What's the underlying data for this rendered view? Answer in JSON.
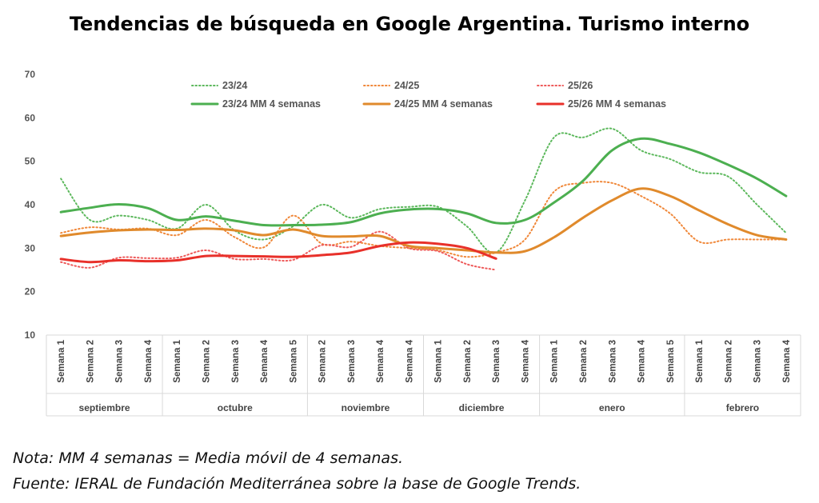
{
  "chart_data": {
    "type": "line",
    "title": "Tendencias de búsqueda en Google Argentina. Turismo interno",
    "ylim": [
      10,
      70
    ],
    "yticks": [
      10,
      20,
      30,
      40,
      50,
      60,
      70
    ],
    "grid": false,
    "legend": "top",
    "months": [
      {
        "name": "septiembre",
        "weeks": [
          "Semana 1",
          "Semana 2",
          "Semana 3",
          "Semana 4"
        ]
      },
      {
        "name": "octubre",
        "weeks": [
          "Semana 1",
          "Semana 2",
          "Semana 3",
          "Semana 4",
          "Semana 5"
        ]
      },
      {
        "name": "noviembre",
        "weeks": [
          "Semana 2",
          "Semana 3",
          "Semana 4",
          "Semana 4"
        ]
      },
      {
        "name": "diciembre",
        "weeks": [
          "Semana 1",
          "Semana 2",
          "Semana 3",
          "Semana 4"
        ]
      },
      {
        "name": "enero",
        "weeks": [
          "Semana 1",
          "Semana 2",
          "Semana 3",
          "Semana 4",
          "Semana 5"
        ]
      },
      {
        "name": "febrero",
        "weeks": [
          "Semana 1",
          "Semana 2",
          "Semana 3",
          "Semana 4"
        ]
      }
    ],
    "series": [
      {
        "name": "23/24",
        "color": "#5cb85c",
        "style": "dotted",
        "values": [
          46,
          36.5,
          37.5,
          36.5,
          34.5,
          40,
          34,
          32,
          35,
          40,
          37,
          39,
          39.5,
          39.5,
          35,
          29,
          41,
          55.5,
          55.5,
          57.5,
          52.5,
          50.5,
          47.5,
          46.5,
          40,
          33.5
        ]
      },
      {
        "name": "24/25",
        "color": "#f0883a",
        "style": "dotted",
        "values": [
          33.5,
          34.8,
          34.3,
          34.5,
          33,
          36.5,
          32.5,
          30.2,
          37.5,
          31,
          31.5,
          30.5,
          30,
          29.5,
          28,
          29,
          32,
          43,
          45,
          45,
          42,
          38,
          31.5,
          32,
          32,
          32
        ]
      },
      {
        "name": "25/26",
        "color": "#ee5a5a",
        "style": "dotted",
        "values": [
          26.8,
          25.5,
          27.8,
          27.7,
          27.8,
          29.5,
          27.5,
          27.5,
          27.3,
          30.7,
          30.3,
          33.8,
          30,
          29.3,
          26.3,
          25
        ]
      },
      {
        "name": "23/24 MM 4 semanas",
        "color": "#4caf50",
        "style": "solid",
        "values": [
          38.3,
          39.3,
          40.1,
          39.2,
          36.5,
          37.3,
          36.3,
          35.3,
          35.3,
          35.4,
          36,
          38,
          38.9,
          39,
          38,
          35.8,
          36.5,
          40.5,
          45.5,
          52.5,
          55.2,
          54,
          52,
          49.2,
          46,
          42
        ]
      },
      {
        "name": "24/25 MM 4 semanas",
        "color": "#e08a2c",
        "style": "solid",
        "values": [
          32.8,
          33.6,
          34.1,
          34.3,
          34.2,
          34.5,
          34.1,
          33,
          34.3,
          32.8,
          32.7,
          32.8,
          30.5,
          30,
          29.5,
          29,
          29.3,
          32.5,
          37,
          41,
          43.7,
          42,
          38.7,
          35.5,
          33,
          32
        ]
      },
      {
        "name": "25/26 MM 4 semanas",
        "color": "#e8302a",
        "style": "solid",
        "values": [
          27.5,
          26.8,
          27.2,
          27,
          27.2,
          28.2,
          28.2,
          28.1,
          28,
          28.4,
          29,
          30.5,
          31.3,
          31,
          30,
          27.6
        ]
      }
    ]
  },
  "notes": {
    "nota": "Nota: MM 4 semanas = Media móvil de 4 semanas.",
    "fuente": "Fuente: IERAL de Fundación Mediterránea sobre la base de Google Trends."
  }
}
